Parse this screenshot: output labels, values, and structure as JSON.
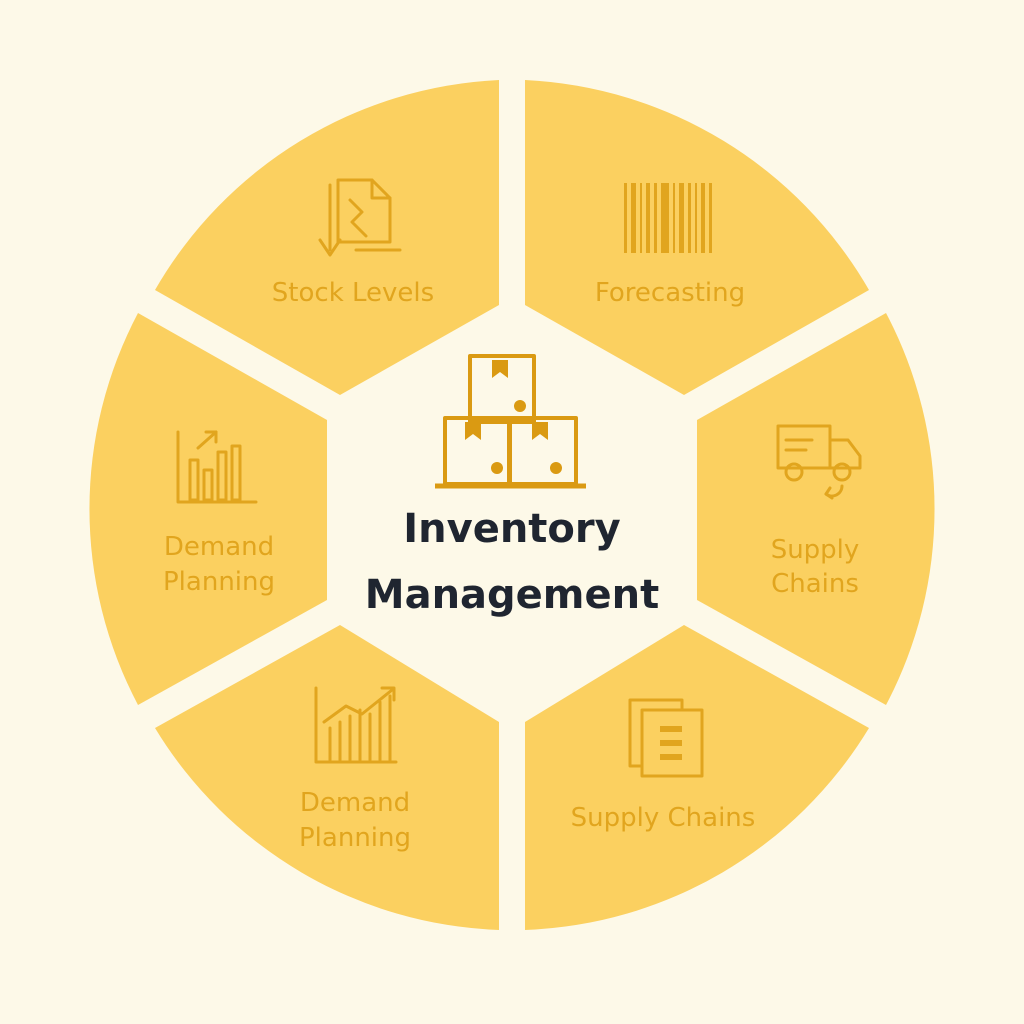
{
  "center": {
    "title_line1": "Inventory",
    "title_line2": "Management",
    "icon": "stacked-boxes-icon"
  },
  "segments": [
    {
      "id": "top-left",
      "label_lines": [
        "Stock Levels"
      ],
      "icon": "clipboard-arrow-down-icon"
    },
    {
      "id": "top-right",
      "label_lines": [
        "Forecasting"
      ],
      "icon": "barcode-icon"
    },
    {
      "id": "right",
      "label_lines": [
        "Supply",
        "Chains"
      ],
      "icon": "delivery-truck-icon"
    },
    {
      "id": "bottom-right",
      "label_lines": [
        "Supply Chains"
      ],
      "icon": "document-list-icon"
    },
    {
      "id": "bottom-left",
      "label_lines": [
        "Demand",
        "Planning"
      ],
      "icon": "bar-chart-trend-icon"
    },
    {
      "id": "left",
      "label_lines": [
        "Demand",
        "Planning"
      ],
      "icon": "bar-chart-growth-icon"
    }
  ],
  "colors": {
    "background": "#FDF9E8",
    "segment_fill": "#FBD060",
    "segment_text": "#E1A51E",
    "center_text": "#1F2530",
    "center_icon": "#DA9A12"
  }
}
